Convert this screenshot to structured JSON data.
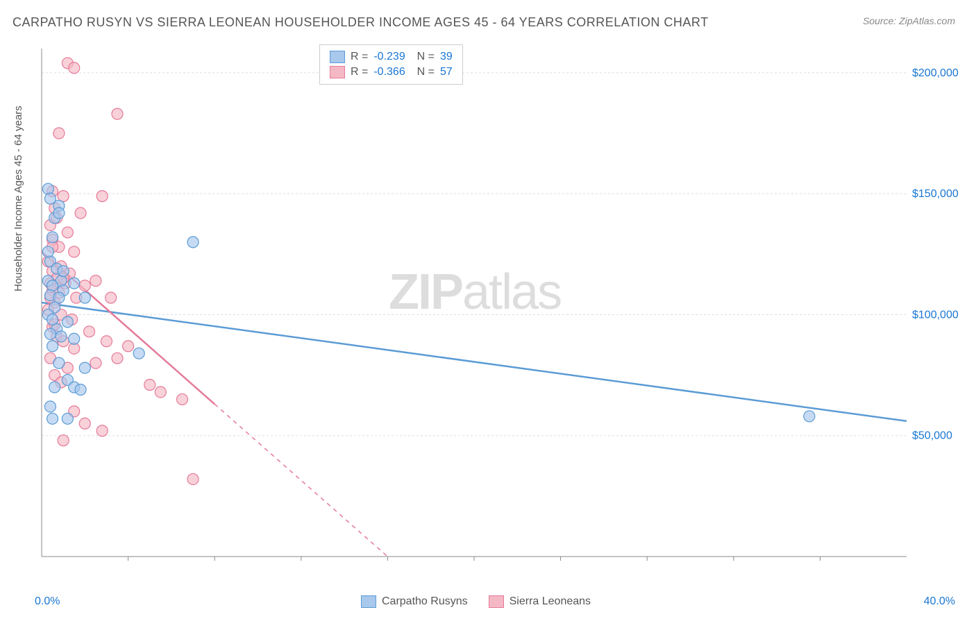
{
  "title": "CARPATHO RUSYN VS SIERRA LEONEAN HOUSEHOLDER INCOME AGES 45 - 64 YEARS CORRELATION CHART",
  "source": "Source: ZipAtlas.com",
  "ylabel": "Householder Income Ages 45 - 64 years",
  "watermark_bold": "ZIP",
  "watermark_rest": "atlas",
  "chart": {
    "type": "scatter",
    "xlim": [
      0,
      40
    ],
    "ylim": [
      0,
      210000
    ],
    "x_start_label": "0.0%",
    "x_end_label": "40.0%",
    "y_ticks": [
      50000,
      100000,
      150000,
      200000
    ],
    "y_tick_labels": [
      "$50,000",
      "$100,000",
      "$150,000",
      "$200,000"
    ],
    "x_minor_ticks": [
      4,
      8,
      12,
      16,
      20,
      24,
      28,
      32,
      36
    ],
    "grid_color": "#dddddd",
    "axis_color": "#888888",
    "background_color": "#ffffff",
    "series": [
      {
        "name": "Carpatho Rusyns",
        "color_fill": "#a8c8ec",
        "color_stroke": "#5b9bd5",
        "marker_radius": 8,
        "stats": {
          "R": "-0.239",
          "N": "39"
        },
        "regression": {
          "x1": 0,
          "y1": 105000,
          "x2": 40,
          "y2": 56000,
          "solid": true
        },
        "points": [
          [
            0.3,
            152000
          ],
          [
            0.4,
            148000
          ],
          [
            0.8,
            145000
          ],
          [
            0.6,
            140000
          ],
          [
            0.5,
            132000
          ],
          [
            7.0,
            130000
          ],
          [
            0.4,
            122000
          ],
          [
            0.7,
            119000
          ],
          [
            0.3,
            114000
          ],
          [
            0.9,
            114000
          ],
          [
            1.5,
            113000
          ],
          [
            0.5,
            112000
          ],
          [
            1.0,
            110000
          ],
          [
            0.4,
            108000
          ],
          [
            0.8,
            107000
          ],
          [
            2.0,
            107000
          ],
          [
            0.6,
            103000
          ],
          [
            0.3,
            100000
          ],
          [
            0.5,
            98000
          ],
          [
            1.2,
            97000
          ],
          [
            0.7,
            94000
          ],
          [
            0.4,
            92000
          ],
          [
            0.9,
            91000
          ],
          [
            1.5,
            90000
          ],
          [
            0.5,
            87000
          ],
          [
            4.5,
            84000
          ],
          [
            0.8,
            80000
          ],
          [
            2.0,
            78000
          ],
          [
            1.2,
            73000
          ],
          [
            0.6,
            70000
          ],
          [
            1.5,
            70000
          ],
          [
            1.8,
            69000
          ],
          [
            0.4,
            62000
          ],
          [
            0.5,
            57000
          ],
          [
            1.2,
            57000
          ],
          [
            35.5,
            58000
          ],
          [
            0.8,
            142000
          ],
          [
            0.3,
            126000
          ],
          [
            1.0,
            118000
          ]
        ]
      },
      {
        "name": "Sierra Leoneans",
        "color_fill": "#f4b8c4",
        "color_stroke": "#e57998",
        "marker_radius": 8,
        "stats": {
          "R": "-0.366",
          "N": "57"
        },
        "regression": {
          "x1": 0,
          "y1": 126000,
          "x2": 16,
          "y2": 0,
          "solid_until_x": 8
        },
        "points": [
          [
            1.2,
            204000
          ],
          [
            1.5,
            202000
          ],
          [
            0.8,
            175000
          ],
          [
            3.5,
            183000
          ],
          [
            0.5,
            151000
          ],
          [
            1.0,
            149000
          ],
          [
            2.8,
            149000
          ],
          [
            0.6,
            144000
          ],
          [
            1.8,
            142000
          ],
          [
            0.4,
            137000
          ],
          [
            1.2,
            134000
          ],
          [
            0.5,
            131000
          ],
          [
            0.8,
            128000
          ],
          [
            1.5,
            126000
          ],
          [
            0.3,
            122000
          ],
          [
            0.9,
            120000
          ],
          [
            0.5,
            118000
          ],
          [
            1.3,
            117000
          ],
          [
            0.7,
            115000
          ],
          [
            0.4,
            113000
          ],
          [
            1.1,
            113000
          ],
          [
            2.5,
            114000
          ],
          [
            0.5,
            110000
          ],
          [
            0.8,
            109000
          ],
          [
            1.6,
            107000
          ],
          [
            2.0,
            112000
          ],
          [
            3.2,
            107000
          ],
          [
            0.6,
            105000
          ],
          [
            0.3,
            102000
          ],
          [
            0.9,
            100000
          ],
          [
            1.4,
            98000
          ],
          [
            0.5,
            95000
          ],
          [
            2.2,
            93000
          ],
          [
            0.7,
            91000
          ],
          [
            1.0,
            89000
          ],
          [
            3.0,
            89000
          ],
          [
            1.5,
            86000
          ],
          [
            4.0,
            87000
          ],
          [
            0.4,
            82000
          ],
          [
            2.5,
            80000
          ],
          [
            3.5,
            82000
          ],
          [
            1.2,
            78000
          ],
          [
            0.6,
            75000
          ],
          [
            5.0,
            71000
          ],
          [
            0.9,
            72000
          ],
          [
            5.5,
            68000
          ],
          [
            1.5,
            60000
          ],
          [
            2.0,
            55000
          ],
          [
            6.5,
            65000
          ],
          [
            2.8,
            52000
          ],
          [
            1.0,
            48000
          ],
          [
            7.0,
            32000
          ],
          [
            0.5,
            128000
          ],
          [
            0.7,
            140000
          ],
          [
            1.0,
            115000
          ],
          [
            0.4,
            107000
          ],
          [
            0.6,
            96000
          ]
        ]
      }
    ]
  },
  "legend_bottom": [
    {
      "label": "Carpatho Rusyns",
      "fill": "#a8c8ec",
      "stroke": "#5b9bd5"
    },
    {
      "label": "Sierra Leoneans",
      "fill": "#f4b8c4",
      "stroke": "#e57998"
    }
  ]
}
